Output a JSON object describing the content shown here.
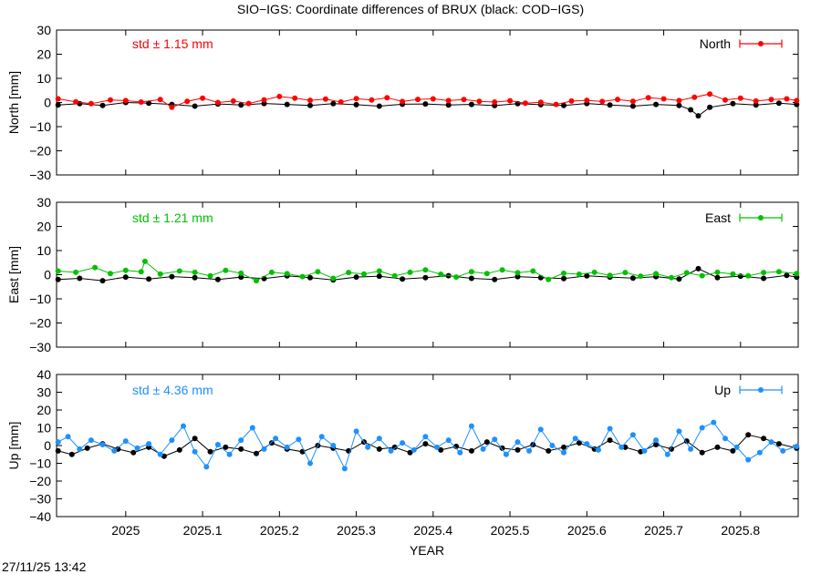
{
  "chart_data": {
    "type": "scatter",
    "title": "SIO−IGS: Coordinate differences of BRUX (black: COD−IGS)",
    "xlabel": "YEAR",
    "x_ticks": [
      "2025",
      "2025.1",
      "2025.2",
      "2025.3",
      "2025.4",
      "2025.5",
      "2025.6",
      "2025.7",
      "2025.8"
    ],
    "xlim": [
      2024.91,
      2025.875
    ],
    "footer": "27/11/25 13:42",
    "panels": [
      {
        "id": "north",
        "ylabel": "North [mm]",
        "ylim": [
          -30,
          30
        ],
        "y_ticks": [
          "30",
          "20",
          "10",
          "0",
          "−10",
          "−20",
          "−30"
        ],
        "std_label": "std ± 1.15 mm",
        "legend": "North",
        "color": "#ff0000",
        "ref_color": "#000000",
        "series": [
          {
            "x": [
              2024.912,
              2024.935,
              2024.955,
              2024.98,
              2025.0,
              2025.02,
              2025.045,
              2025.06,
              2025.08,
              2025.1,
              2025.12,
              2025.14,
              2025.16,
              2025.18,
              2025.2,
              2025.22,
              2025.24,
              2025.26,
              2025.28,
              2025.3,
              2025.32,
              2025.34,
              2025.36,
              2025.38,
              2025.4,
              2025.42,
              2025.44,
              2025.46,
              2025.48,
              2025.5,
              2025.52,
              2025.54,
              2025.56,
              2025.58,
              2025.6,
              2025.62,
              2025.64,
              2025.66,
              2025.68,
              2025.7,
              2025.72,
              2025.74,
              2025.76,
              2025.78,
              2025.8,
              2025.82,
              2025.84,
              2025.86,
              2025.873
            ],
            "y": [
              1.5,
              0.3,
              -0.5,
              1.0,
              0.8,
              0.2,
              1.2,
              -2.0,
              0.5,
              1.8,
              0.0,
              0.6,
              -0.4,
              1.1,
              2.5,
              1.8,
              0.9,
              1.4,
              0.2,
              1.6,
              1.0,
              2.0,
              0.4,
              1.3,
              1.5,
              0.8,
              1.2,
              0.5,
              0.2,
              0.7,
              -0.3,
              0.1,
              -0.8,
              0.6,
              0.9,
              0.4,
              1.3,
              0.5,
              2.0,
              1.5,
              0.8,
              2.2,
              3.5,
              1.0,
              1.8,
              0.6,
              1.2,
              1.5,
              0.8
            ]
          },
          {
            "x": [
              2024.912,
              2024.94,
              2024.97,
              2025.0,
              2025.03,
              2025.06,
              2025.09,
              2025.12,
              2025.15,
              2025.18,
              2025.21,
              2025.24,
              2025.27,
              2025.3,
              2025.33,
              2025.36,
              2025.39,
              2025.42,
              2025.45,
              2025.48,
              2025.51,
              2025.54,
              2025.57,
              2025.6,
              2025.63,
              2025.66,
              2025.69,
              2025.72,
              2025.735,
              2025.745,
              2025.76,
              2025.79,
              2025.82,
              2025.85,
              2025.873
            ],
            "y": [
              -1.0,
              -0.5,
              -1.2,
              0.0,
              -0.3,
              -0.8,
              -1.5,
              -0.6,
              -1.0,
              -0.4,
              -0.8,
              -1.2,
              -0.5,
              -0.9,
              -1.5,
              -0.7,
              -0.6,
              -1.0,
              -0.8,
              -1.3,
              -0.5,
              -0.9,
              -1.2,
              -0.4,
              -1.0,
              -1.5,
              -0.8,
              -1.2,
              -3.0,
              -5.5,
              -2.0,
              -0.5,
              -1.0,
              -0.3,
              -0.8
            ]
          }
        ]
      },
      {
        "id": "east",
        "ylabel": "East [mm]",
        "ylim": [
          -30,
          30
        ],
        "y_ticks": [
          "30",
          "20",
          "10",
          "0",
          "−10",
          "−20",
          "−30"
        ],
        "std_label": "std ± 1.21 mm",
        "legend": "East",
        "color": "#00c000",
        "ref_color": "#000000",
        "series": [
          {
            "x": [
              2024.912,
              2024.935,
              2024.96,
              2024.98,
              2025.0,
              2025.02,
              2025.025,
              2025.045,
              2025.07,
              2025.09,
              2025.11,
              2025.13,
              2025.15,
              2025.17,
              2025.19,
              2025.21,
              2025.23,
              2025.25,
              2025.27,
              2025.29,
              2025.31,
              2025.33,
              2025.35,
              2025.37,
              2025.39,
              2025.41,
              2025.43,
              2025.45,
              2025.47,
              2025.49,
              2025.51,
              2025.53,
              2025.55,
              2025.57,
              2025.59,
              2025.61,
              2025.63,
              2025.65,
              2025.67,
              2025.69,
              2025.71,
              2025.73,
              2025.75,
              2025.77,
              2025.79,
              2025.81,
              2025.83,
              2025.85,
              2025.873
            ],
            "y": [
              1.5,
              1.0,
              3.0,
              0.5,
              1.8,
              1.2,
              5.5,
              0.3,
              1.5,
              1.0,
              -0.5,
              1.8,
              0.6,
              -2.5,
              1.0,
              0.4,
              -0.8,
              1.2,
              -1.5,
              0.9,
              0.3,
              1.5,
              -0.5,
              1.0,
              2.0,
              0.2,
              -1.0,
              1.2,
              0.5,
              2.0,
              0.8,
              1.5,
              -2.0,
              0.6,
              0.2,
              1.0,
              -0.3,
              0.9,
              -0.6,
              0.4,
              -1.2,
              0.8,
              -0.4,
              1.0,
              0.3,
              -0.5,
              0.9,
              1.2,
              0.5
            ]
          },
          {
            "x": [
              2024.912,
              2024.94,
              2024.97,
              2025.0,
              2025.03,
              2025.06,
              2025.09,
              2025.12,
              2025.15,
              2025.18,
              2025.21,
              2025.24,
              2025.27,
              2025.3,
              2025.33,
              2025.36,
              2025.39,
              2025.42,
              2025.45,
              2025.48,
              2025.51,
              2025.54,
              2025.57,
              2025.6,
              2025.63,
              2025.66,
              2025.69,
              2025.72,
              2025.745,
              2025.77,
              2025.8,
              2025.83,
              2025.86,
              2025.873
            ],
            "y": [
              -2.0,
              -1.5,
              -2.5,
              -1.0,
              -1.8,
              -0.8,
              -1.2,
              -2.0,
              -1.0,
              -1.6,
              -0.5,
              -1.2,
              -2.2,
              -1.0,
              -0.6,
              -1.8,
              -1.2,
              -0.4,
              -1.5,
              -2.0,
              -0.8,
              -1.2,
              -1.6,
              -0.5,
              -1.0,
              -1.4,
              -0.8,
              -1.8,
              2.5,
              -1.2,
              -0.6,
              -1.5,
              -0.3,
              -1.0
            ]
          }
        ]
      },
      {
        "id": "up",
        "ylabel": "Up [mm]",
        "ylim": [
          -40,
          40
        ],
        "y_ticks": [
          "40",
          "30",
          "20",
          "10",
          "0",
          "−10",
          "−20",
          "−30",
          "−40"
        ],
        "std_label": "std ± 4.36 mm",
        "legend": "Up",
        "color": "#1e90ff",
        "ref_color": "#000000",
        "series": [
          {
            "x": [
              2024.912,
              2024.925,
              2024.94,
              2024.955,
              2024.97,
              2024.985,
              2025.0,
              2025.015,
              2025.03,
              2025.045,
              2025.06,
              2025.075,
              2025.09,
              2025.105,
              2025.12,
              2025.135,
              2025.15,
              2025.165,
              2025.18,
              2025.195,
              2025.21,
              2025.225,
              2025.24,
              2025.255,
              2025.27,
              2025.285,
              2025.3,
              2025.315,
              2025.33,
              2025.345,
              2025.36,
              2025.375,
              2025.39,
              2025.405,
              2025.42,
              2025.435,
              2025.45,
              2025.465,
              2025.48,
              2025.495,
              2025.51,
              2025.525,
              2025.54,
              2025.555,
              2025.57,
              2025.585,
              2025.6,
              2025.615,
              2025.63,
              2025.645,
              2025.66,
              2025.675,
              2025.69,
              2025.705,
              2025.72,
              2025.735,
              2025.75,
              2025.765,
              2025.78,
              2025.795,
              2025.81,
              2025.825,
              2025.84,
              2025.855,
              2025.873
            ],
            "y": [
              2.0,
              5.0,
              -2.0,
              3.0,
              0.5,
              -3.0,
              2.5,
              -1.5,
              1.0,
              -5.0,
              3.0,
              11.0,
              -3.5,
              -12.0,
              0.5,
              -5.0,
              3.0,
              10.0,
              -2.0,
              4.0,
              -1.0,
              3.5,
              -10.0,
              5.0,
              0.0,
              -13.0,
              8.0,
              -1.0,
              4.0,
              -3.0,
              1.5,
              -2.5,
              5.0,
              -1.0,
              3.0,
              -4.0,
              11.0,
              -2.0,
              3.5,
              -5.0,
              2.0,
              -3.0,
              9.0,
              0.0,
              -4.0,
              4.0,
              1.0,
              -2.5,
              9.5,
              -1.0,
              6.0,
              -3.0,
              3.0,
              -5.0,
              8.0,
              -2.0,
              10.0,
              13.0,
              4.0,
              -1.0,
              -8.0,
              -4.0,
              2.0,
              -3.0,
              -0.5
            ]
          },
          {
            "x": [
              2024.912,
              2024.93,
              2024.95,
              2024.97,
              2024.99,
              2025.01,
              2025.03,
              2025.05,
              2025.07,
              2025.09,
              2025.11,
              2025.13,
              2025.15,
              2025.17,
              2025.19,
              2025.21,
              2025.23,
              2025.25,
              2025.27,
              2025.29,
              2025.31,
              2025.33,
              2025.35,
              2025.37,
              2025.39,
              2025.41,
              2025.43,
              2025.45,
              2025.47,
              2025.49,
              2025.51,
              2025.53,
              2025.55,
              2025.57,
              2025.59,
              2025.61,
              2025.63,
              2025.65,
              2025.67,
              2025.69,
              2025.71,
              2025.73,
              2025.75,
              2025.77,
              2025.79,
              2025.81,
              2025.83,
              2025.85,
              2025.873
            ],
            "y": [
              -3.0,
              -5.0,
              -1.5,
              1.0,
              -2.0,
              -4.0,
              -1.0,
              -6.0,
              -2.5,
              4.0,
              -3.5,
              -1.0,
              -2.0,
              -4.5,
              1.5,
              -2.0,
              -3.5,
              0.0,
              -1.5,
              -3.0,
              2.0,
              -2.0,
              -1.0,
              -4.0,
              1.0,
              -2.5,
              -0.5,
              -3.0,
              2.0,
              -1.5,
              -2.5,
              0.5,
              -3.0,
              -1.0,
              1.5,
              -2.0,
              3.0,
              -1.0,
              -3.5,
              0.5,
              -2.0,
              2.5,
              -4.0,
              -1.0,
              -3.0,
              6.0,
              4.0,
              1.0,
              -1.5
            ]
          }
        ]
      }
    ]
  }
}
